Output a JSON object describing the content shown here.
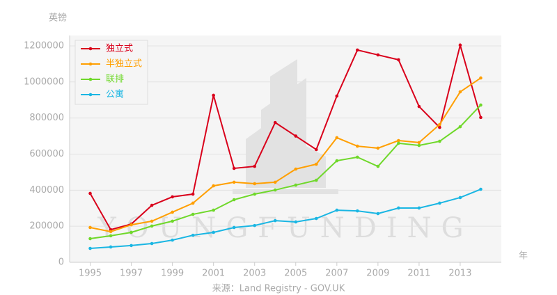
{
  "chart_data": {
    "type": "line",
    "y_label": "英镑",
    "x_label": "年",
    "source": "来源：Land Registry - GOV.UK",
    "watermark": "YOUNGFUNDING",
    "x": [
      1995,
      1996,
      1997,
      1998,
      1999,
      2000,
      2001,
      2002,
      2003,
      2004,
      2005,
      2006,
      2007,
      2008,
      2009,
      2010,
      2011,
      2012,
      2013,
      2014
    ],
    "series": [
      {
        "name": "独立式",
        "color": "#d9001b",
        "values": [
          382000,
          181000,
          212000,
          316000,
          363000,
          378000,
          926000,
          521000,
          532000,
          775000,
          700000,
          625000,
          922000,
          1177000,
          1150000,
          1123000,
          864000,
          748000,
          1204000,
          803000
        ]
      },
      {
        "name": "半独立式",
        "color": "#ff9f00",
        "values": [
          193000,
          170000,
          208000,
          228000,
          278000,
          328000,
          424000,
          444000,
          436000,
          444000,
          517000,
          544000,
          691000,
          644000,
          633000,
          675000,
          664000,
          764000,
          945000,
          1022000
        ]
      },
      {
        "name": "联排",
        "color": "#6fd82a",
        "values": [
          131000,
          147000,
          166000,
          201000,
          228000,
          266000,
          289000,
          347000,
          378000,
          401000,
          428000,
          455000,
          563000,
          583000,
          532000,
          660000,
          648000,
          671000,
          752000,
          872000
        ]
      },
      {
        "name": "公寓",
        "color": "#1ab6e3",
        "values": [
          77000,
          85000,
          93000,
          104000,
          123000,
          150000,
          166000,
          193000,
          204000,
          231000,
          224000,
          243000,
          289000,
          285000,
          270000,
          301000,
          301000,
          328000,
          359000,
          405000
        ]
      }
    ],
    "xlim": [
      1994,
      2015
    ],
    "xticks": [
      1995,
      1997,
      1999,
      2001,
      2003,
      2005,
      2007,
      2009,
      2011,
      2013
    ],
    "ylim": [
      0,
      1250000
    ],
    "yticks": [
      0,
      200000,
      400000,
      600000,
      800000,
      1000000,
      1200000
    ],
    "grid": true,
    "legend": "top-left"
  }
}
